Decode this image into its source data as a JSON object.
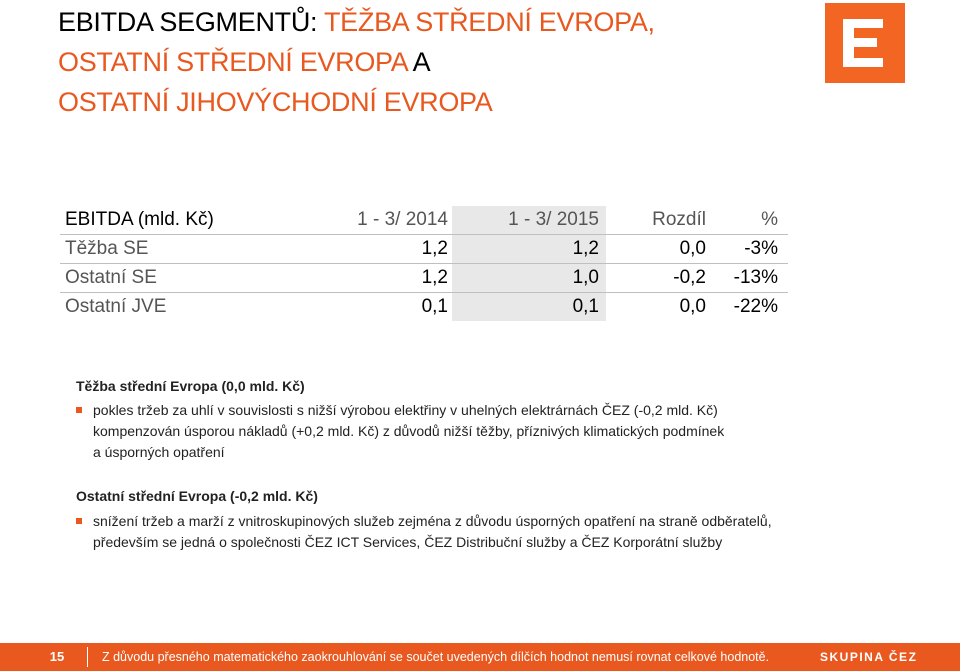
{
  "title": {
    "line1_prefix": "EBITDA SEGMENTŮ: ",
    "line1_highlight": "TĚŽBA STŘEDNÍ EVROPA,",
    "line2_highlight": "OSTATNÍ STŘEDNÍ EVROPA",
    "line2_suffix": " A",
    "line3_highlight": "OSTATNÍ JIHOVÝCHODNÍ EVROPA"
  },
  "logo": {
    "icon": "cez-logo-icon",
    "color": "#f26522"
  },
  "table": {
    "header": {
      "label": "EBITDA (mld. Kč)",
      "y1": "1 - 3/ 2014",
      "y2": "1 - 3/ 2015",
      "diff": "Rozdíl",
      "pct": "%"
    },
    "rows": [
      {
        "label": "Těžba SE",
        "y1": "1,2",
        "y2": "1,2",
        "diff": "0,0",
        "pct": "-3%"
      },
      {
        "label": "Ostatní SE",
        "y1": "1,2",
        "y2": "1,0",
        "diff": "-0,2",
        "pct": "-13%"
      },
      {
        "label": "Ostatní JVE",
        "y1": "0,1",
        "y2": "0,1",
        "diff": "0,0",
        "pct": "-22%"
      }
    ]
  },
  "sections": [
    {
      "heading": "Těžba střední Evropa (0,0 mld. Kč)",
      "bullet_lines": [
        "pokles tržeb za uhlí v souvislosti s nižší výrobou elektřiny v uhelných elektrárnách ČEZ (-0,2 mld. Kč)",
        "kompenzován úsporou nákladů (+0,2 mld. Kč) z důvodů nižší těžby, příznivých klimatických podmínek",
        "a úsporných opatření"
      ]
    },
    {
      "heading": "Ostatní střední Evropa (-0,2 mld. Kč)",
      "bullet_lines": [
        "snížení tržeb a marží z vnitroskupinových služeb zejména z důvodu úsporných opatření na straně odběratelů,",
        "především se jedná o společnosti ČEZ ICT Services, ČEZ Distribuční služby a ČEZ Korporátní služby"
      ]
    }
  ],
  "footer": {
    "page_number": "15",
    "note": "Z důvodu přesného matematického zaokrouhlování se součet uvedených dílčích hodnot nemusí rovnat celkové hodnotě.",
    "brand": "SKUPINA ČEZ"
  },
  "colors": {
    "accent": "#e8581f",
    "highlight_column": "#e8e8e8"
  }
}
